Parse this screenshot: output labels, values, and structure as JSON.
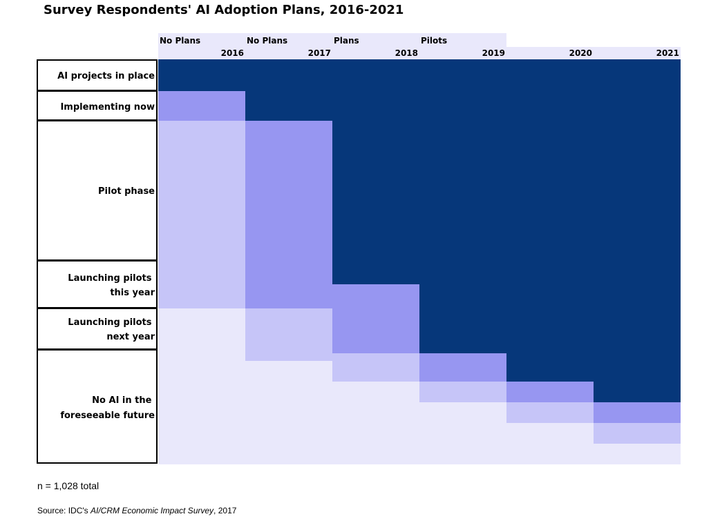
{
  "title": "Survey Respondents' AI Adoption Plans, 2016-2021",
  "note": "n = 1,028 total",
  "source": {
    "prefix": "Source: IDC's ",
    "survey_name": "AI/CRM Economic Impact Survey",
    "suffix": ", 2017"
  },
  "colors": {
    "dark": "#06377a",
    "medium": "#9796f1",
    "light": "#c6c5f8",
    "pale": "#e9e8fb",
    "header_band": "#e9e8fb",
    "border": "#000000"
  },
  "chart_data": {
    "type": "table",
    "years": [
      "2016",
      "2017",
      "2018",
      "2019",
      "2020",
      "2021"
    ],
    "header_tags": [
      "No Plans",
      "No Plans",
      "Plans",
      "Pilots"
    ],
    "categories": [
      "AI projects in place",
      "Implementing now",
      "Pilot phase",
      "Launching pilots this year",
      "Launching pilots next year",
      "No AI in the foreseeable future"
    ],
    "legend": "none",
    "grid": false
  }
}
